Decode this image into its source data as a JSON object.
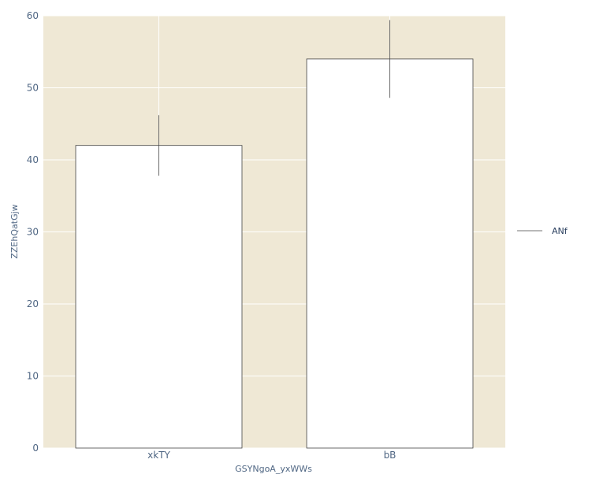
{
  "chart_data": {
    "type": "bar",
    "categories": [
      "xkTY",
      "bB"
    ],
    "series": [
      {
        "name": "ANf",
        "values": [
          42,
          54
        ],
        "error_plus": [
          4.2,
          5.4
        ],
        "error_minus": [
          4.2,
          5.4
        ]
      }
    ],
    "xlabel": "GSYNgoA_yxWWs",
    "ylabel": "ZZEhQatGjw",
    "ylim": [
      0,
      60
    ],
    "yticks": [
      0,
      10,
      20,
      30,
      40,
      50,
      60
    ],
    "grid": true,
    "legend_position": "right",
    "colors": {
      "plot_background": "#efe8d5",
      "bar_fill": "#ffffff",
      "bar_outline": "#444444",
      "error_bar": "#444444",
      "grid": "#ffffff",
      "tick_text": "#506784",
      "legend_line": "#444444"
    }
  }
}
